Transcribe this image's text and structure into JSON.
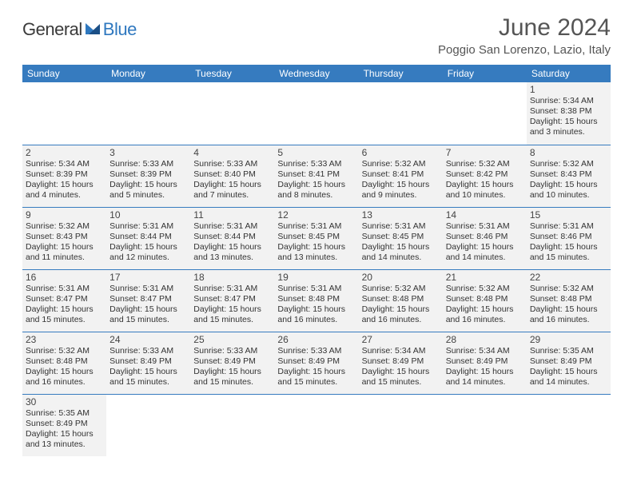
{
  "brand": {
    "general": "General",
    "blue": "Blue"
  },
  "title": "June 2024",
  "location": "Poggio San Lorenzo, Lazio, Italy",
  "colors": {
    "header_bg": "#367bbf",
    "header_fg": "#ffffff",
    "row_bg": "#f2f2f2",
    "rule": "#367bbf",
    "logo_blue": "#2f78bf",
    "text": "#333333"
  },
  "typography": {
    "title_fontsize": 30,
    "location_fontsize": 15,
    "header_fontsize": 12,
    "cell_fontsize": 10.5,
    "daynum_fontsize": 12
  },
  "headers": [
    "Sunday",
    "Monday",
    "Tuesday",
    "Wednesday",
    "Thursday",
    "Friday",
    "Saturday"
  ],
  "weeks": [
    [
      null,
      null,
      null,
      null,
      null,
      null,
      {
        "d": "1",
        "sr": "Sunrise: 5:34 AM",
        "ss": "Sunset: 8:38 PM",
        "dl1": "Daylight: 15 hours",
        "dl2": "and 3 minutes."
      }
    ],
    [
      {
        "d": "2",
        "sr": "Sunrise: 5:34 AM",
        "ss": "Sunset: 8:39 PM",
        "dl1": "Daylight: 15 hours",
        "dl2": "and 4 minutes."
      },
      {
        "d": "3",
        "sr": "Sunrise: 5:33 AM",
        "ss": "Sunset: 8:39 PM",
        "dl1": "Daylight: 15 hours",
        "dl2": "and 5 minutes."
      },
      {
        "d": "4",
        "sr": "Sunrise: 5:33 AM",
        "ss": "Sunset: 8:40 PM",
        "dl1": "Daylight: 15 hours",
        "dl2": "and 7 minutes."
      },
      {
        "d": "5",
        "sr": "Sunrise: 5:33 AM",
        "ss": "Sunset: 8:41 PM",
        "dl1": "Daylight: 15 hours",
        "dl2": "and 8 minutes."
      },
      {
        "d": "6",
        "sr": "Sunrise: 5:32 AM",
        "ss": "Sunset: 8:41 PM",
        "dl1": "Daylight: 15 hours",
        "dl2": "and 9 minutes."
      },
      {
        "d": "7",
        "sr": "Sunrise: 5:32 AM",
        "ss": "Sunset: 8:42 PM",
        "dl1": "Daylight: 15 hours",
        "dl2": "and 10 minutes."
      },
      {
        "d": "8",
        "sr": "Sunrise: 5:32 AM",
        "ss": "Sunset: 8:43 PM",
        "dl1": "Daylight: 15 hours",
        "dl2": "and 10 minutes."
      }
    ],
    [
      {
        "d": "9",
        "sr": "Sunrise: 5:32 AM",
        "ss": "Sunset: 8:43 PM",
        "dl1": "Daylight: 15 hours",
        "dl2": "and 11 minutes."
      },
      {
        "d": "10",
        "sr": "Sunrise: 5:31 AM",
        "ss": "Sunset: 8:44 PM",
        "dl1": "Daylight: 15 hours",
        "dl2": "and 12 minutes."
      },
      {
        "d": "11",
        "sr": "Sunrise: 5:31 AM",
        "ss": "Sunset: 8:44 PM",
        "dl1": "Daylight: 15 hours",
        "dl2": "and 13 minutes."
      },
      {
        "d": "12",
        "sr": "Sunrise: 5:31 AM",
        "ss": "Sunset: 8:45 PM",
        "dl1": "Daylight: 15 hours",
        "dl2": "and 13 minutes."
      },
      {
        "d": "13",
        "sr": "Sunrise: 5:31 AM",
        "ss": "Sunset: 8:45 PM",
        "dl1": "Daylight: 15 hours",
        "dl2": "and 14 minutes."
      },
      {
        "d": "14",
        "sr": "Sunrise: 5:31 AM",
        "ss": "Sunset: 8:46 PM",
        "dl1": "Daylight: 15 hours",
        "dl2": "and 14 minutes."
      },
      {
        "d": "15",
        "sr": "Sunrise: 5:31 AM",
        "ss": "Sunset: 8:46 PM",
        "dl1": "Daylight: 15 hours",
        "dl2": "and 15 minutes."
      }
    ],
    [
      {
        "d": "16",
        "sr": "Sunrise: 5:31 AM",
        "ss": "Sunset: 8:47 PM",
        "dl1": "Daylight: 15 hours",
        "dl2": "and 15 minutes."
      },
      {
        "d": "17",
        "sr": "Sunrise: 5:31 AM",
        "ss": "Sunset: 8:47 PM",
        "dl1": "Daylight: 15 hours",
        "dl2": "and 15 minutes."
      },
      {
        "d": "18",
        "sr": "Sunrise: 5:31 AM",
        "ss": "Sunset: 8:47 PM",
        "dl1": "Daylight: 15 hours",
        "dl2": "and 15 minutes."
      },
      {
        "d": "19",
        "sr": "Sunrise: 5:31 AM",
        "ss": "Sunset: 8:48 PM",
        "dl1": "Daylight: 15 hours",
        "dl2": "and 16 minutes."
      },
      {
        "d": "20",
        "sr": "Sunrise: 5:32 AM",
        "ss": "Sunset: 8:48 PM",
        "dl1": "Daylight: 15 hours",
        "dl2": "and 16 minutes."
      },
      {
        "d": "21",
        "sr": "Sunrise: 5:32 AM",
        "ss": "Sunset: 8:48 PM",
        "dl1": "Daylight: 15 hours",
        "dl2": "and 16 minutes."
      },
      {
        "d": "22",
        "sr": "Sunrise: 5:32 AM",
        "ss": "Sunset: 8:48 PM",
        "dl1": "Daylight: 15 hours",
        "dl2": "and 16 minutes."
      }
    ],
    [
      {
        "d": "23",
        "sr": "Sunrise: 5:32 AM",
        "ss": "Sunset: 8:48 PM",
        "dl1": "Daylight: 15 hours",
        "dl2": "and 16 minutes."
      },
      {
        "d": "24",
        "sr": "Sunrise: 5:33 AM",
        "ss": "Sunset: 8:49 PM",
        "dl1": "Daylight: 15 hours",
        "dl2": "and 15 minutes."
      },
      {
        "d": "25",
        "sr": "Sunrise: 5:33 AM",
        "ss": "Sunset: 8:49 PM",
        "dl1": "Daylight: 15 hours",
        "dl2": "and 15 minutes."
      },
      {
        "d": "26",
        "sr": "Sunrise: 5:33 AM",
        "ss": "Sunset: 8:49 PM",
        "dl1": "Daylight: 15 hours",
        "dl2": "and 15 minutes."
      },
      {
        "d": "27",
        "sr": "Sunrise: 5:34 AM",
        "ss": "Sunset: 8:49 PM",
        "dl1": "Daylight: 15 hours",
        "dl2": "and 15 minutes."
      },
      {
        "d": "28",
        "sr": "Sunrise: 5:34 AM",
        "ss": "Sunset: 8:49 PM",
        "dl1": "Daylight: 15 hours",
        "dl2": "and 14 minutes."
      },
      {
        "d": "29",
        "sr": "Sunrise: 5:35 AM",
        "ss": "Sunset: 8:49 PM",
        "dl1": "Daylight: 15 hours",
        "dl2": "and 14 minutes."
      }
    ],
    [
      {
        "d": "30",
        "sr": "Sunrise: 5:35 AM",
        "ss": "Sunset: 8:49 PM",
        "dl1": "Daylight: 15 hours",
        "dl2": "and 13 minutes."
      },
      null,
      null,
      null,
      null,
      null,
      null
    ]
  ]
}
